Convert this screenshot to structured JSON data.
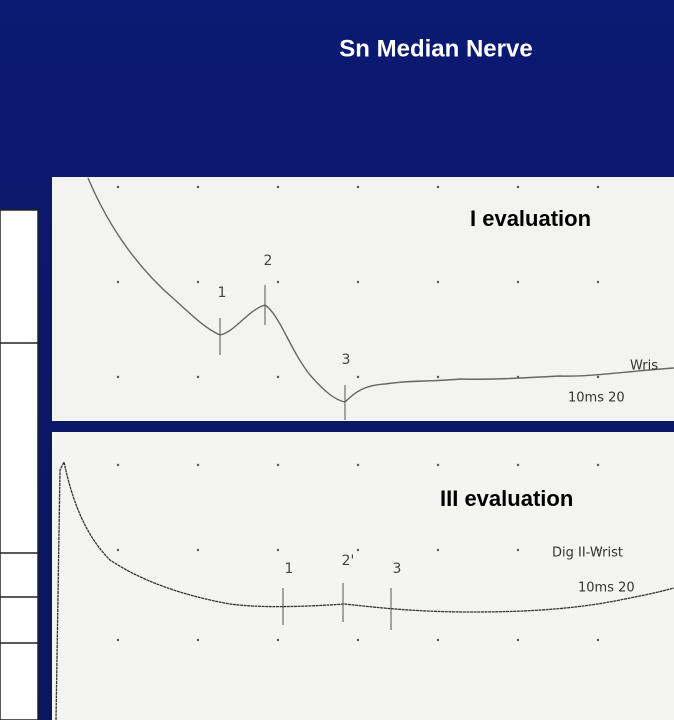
{
  "title": "Sn Median Nerve",
  "panels": [
    {
      "label": "I evaluation",
      "site": "Wris",
      "scale": "10ms 20",
      "peaks": [
        "1",
        "2",
        "3"
      ]
    },
    {
      "label": "III evaluation",
      "site": "Dig II-Wrist",
      "scale": "10ms 20",
      "peaks": [
        "1",
        "2'",
        "3"
      ]
    }
  ]
}
